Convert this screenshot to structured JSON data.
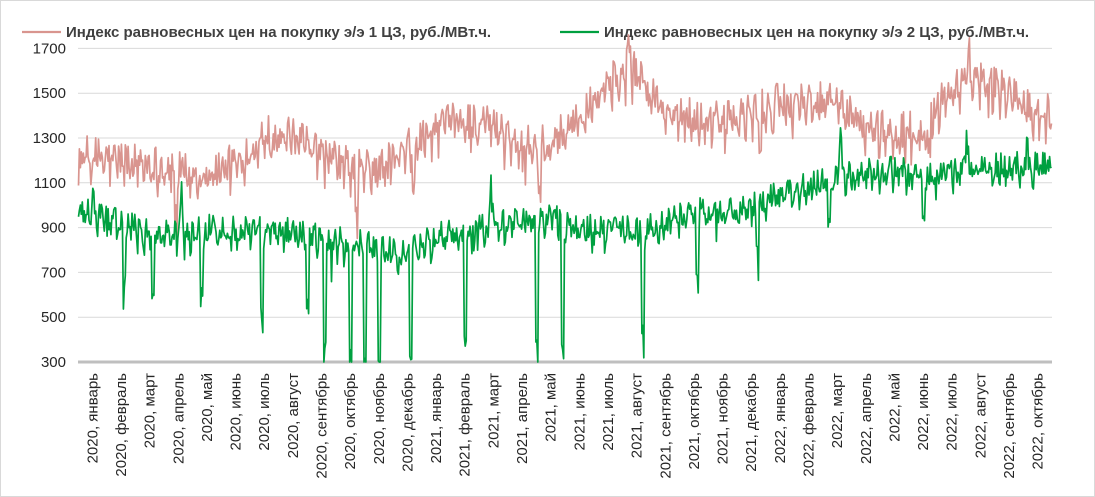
{
  "chart_data": {
    "type": "line",
    "title": "",
    "xlabel": "",
    "ylabel": "",
    "ylim": [
      300,
      1800
    ],
    "yticks": [
      300,
      500,
      700,
      900,
      1100,
      1300,
      1500,
      1700
    ],
    "grid": "horizontal",
    "legend_position": "top",
    "months": [
      "2020, январь",
      "2020, февраль",
      "2020, март",
      "2020, апрель",
      "2020, май",
      "2020, июнь",
      "2020, июль",
      "2020, август",
      "2020, сентябрь",
      "2020, октябрь",
      "2020, ноябрь",
      "2020, декабрь",
      "2021, январь",
      "2021, февраль",
      "2021, март",
      "2021, апрель",
      "2021, май",
      "2021, июнь",
      "2021, июль",
      "2021, август",
      "2021, сентябрь",
      "2021, октябрь",
      "2021, ноябрь",
      "2021, декабрь",
      "2022, январь",
      "2022, февраль",
      "2022, март",
      "2022, апрель",
      "2022, май",
      "2022, июнь",
      "2022, июль",
      "2022, август",
      "2022, сентябрь",
      "2022, октябрь"
    ],
    "series": [
      {
        "name": "Индекс равновесных цен на покупку э/э 1 ЦЗ, руб./МВт.ч.",
        "color": "#d9958f",
        "monthly_base": [
          1230,
          1210,
          1200,
          1160,
          1150,
          1200,
          1330,
          1310,
          1230,
          1180,
          1170,
          1260,
          1360,
          1390,
          1360,
          1290,
          1280,
          1430,
          1560,
          1610,
          1420,
          1400,
          1380,
          1420,
          1470,
          1480,
          1460,
          1370,
          1330,
          1360,
          1540,
          1560,
          1520,
          1420
        ],
        "noise": 80,
        "dips": [
          [
            3.4,
            -200
          ],
          [
            9.7,
            -220
          ],
          [
            11.7,
            -150
          ],
          [
            16.1,
            -200
          ],
          [
            23.8,
            -180
          ],
          [
            29.7,
            -140
          ]
        ],
        "peaks": [
          [
            19.2,
            200
          ],
          [
            31.1,
            120
          ]
        ]
      },
      {
        "name": "Индекс равновесных цен на покупку э/э 2 ЦЗ, руб./МВт.ч.",
        "color": "#00a040",
        "monthly_base": [
          970,
          920,
          880,
          880,
          900,
          900,
          920,
          890,
          860,
          840,
          810,
          790,
          870,
          890,
          920,
          950,
          960,
          900,
          900,
          890,
          920,
          980,
          980,
          990,
          1070,
          1090,
          1130,
          1150,
          1170,
          1120,
          1150,
          1180,
          1180,
          1180
        ],
        "noise": 60,
        "dips": [
          [
            1.6,
            -270
          ],
          [
            2.6,
            -250
          ],
          [
            4.3,
            -260
          ],
          [
            6.4,
            -420
          ],
          [
            8.0,
            -350
          ],
          [
            8.6,
            -420
          ],
          [
            9.5,
            -470
          ],
          [
            10.0,
            -500
          ],
          [
            10.5,
            -500
          ],
          [
            11.6,
            -430
          ],
          [
            13.5,
            -480
          ],
          [
            16.0,
            -600
          ],
          [
            16.9,
            -600
          ],
          [
            19.7,
            -490
          ],
          [
            21.6,
            -270
          ],
          [
            23.7,
            -240
          ],
          [
            26.2,
            -210
          ],
          [
            29.5,
            -180
          ]
        ],
        "peaks": [
          [
            0.5,
            60
          ],
          [
            3.6,
            170
          ],
          [
            14.4,
            220
          ],
          [
            26.6,
            200
          ],
          [
            31.0,
            190
          ],
          [
            33.1,
            120
          ]
        ]
      }
    ]
  }
}
